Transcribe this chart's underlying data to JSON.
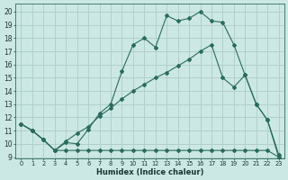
{
  "xlabel": "Humidex (Indice chaleur)",
  "bg_color": "#cce8e4",
  "grid_color": "#b0d0cc",
  "line_color": "#2b6b5e",
  "xlim": [
    -0.5,
    23.5
  ],
  "ylim": [
    8.9,
    20.6
  ],
  "xticks": [
    0,
    1,
    2,
    3,
    4,
    5,
    6,
    7,
    8,
    9,
    10,
    11,
    12,
    13,
    14,
    15,
    16,
    17,
    18,
    19,
    20,
    21,
    22,
    23
  ],
  "yticks": [
    9,
    10,
    11,
    12,
    13,
    14,
    15,
    16,
    17,
    18,
    19,
    20
  ],
  "line1_x": [
    0,
    1,
    2,
    3,
    4,
    5,
    6,
    7,
    8,
    9,
    10,
    11,
    12,
    13,
    14,
    15,
    16,
    17,
    18,
    19,
    20,
    21,
    22,
    23
  ],
  "line1_y": [
    11.5,
    11.0,
    10.3,
    9.5,
    10.1,
    10.0,
    11.1,
    12.3,
    13.0,
    15.5,
    17.5,
    18.0,
    17.3,
    19.7,
    19.3,
    19.5,
    20.0,
    19.3,
    19.2,
    17.5,
    15.2,
    13.0,
    11.8,
    9.2
  ],
  "line2_x": [
    0,
    1,
    2,
    3,
    4,
    5,
    6,
    7,
    8,
    9,
    10,
    11,
    12,
    13,
    14,
    15,
    16,
    17,
    18,
    19,
    20,
    21,
    22,
    23
  ],
  "line2_y": [
    11.5,
    11.0,
    10.3,
    9.5,
    9.5,
    9.5,
    9.5,
    9.5,
    9.5,
    9.5,
    9.5,
    9.5,
    9.5,
    9.5,
    9.5,
    9.5,
    9.5,
    9.5,
    9.5,
    9.5,
    9.5,
    9.5,
    9.5,
    9.0
  ],
  "line3_x": [
    0,
    1,
    2,
    3,
    4,
    5,
    6,
    7,
    8,
    9,
    10,
    11,
    12,
    13,
    14,
    15,
    16,
    17,
    18,
    19,
    20,
    21,
    22,
    23
  ],
  "line3_y": [
    11.5,
    11.0,
    10.3,
    9.5,
    10.2,
    10.8,
    11.3,
    12.1,
    12.7,
    13.4,
    14.0,
    14.5,
    15.0,
    15.4,
    15.9,
    16.4,
    17.0,
    17.5,
    15.0,
    14.3,
    15.2,
    13.0,
    11.8,
    9.0
  ]
}
